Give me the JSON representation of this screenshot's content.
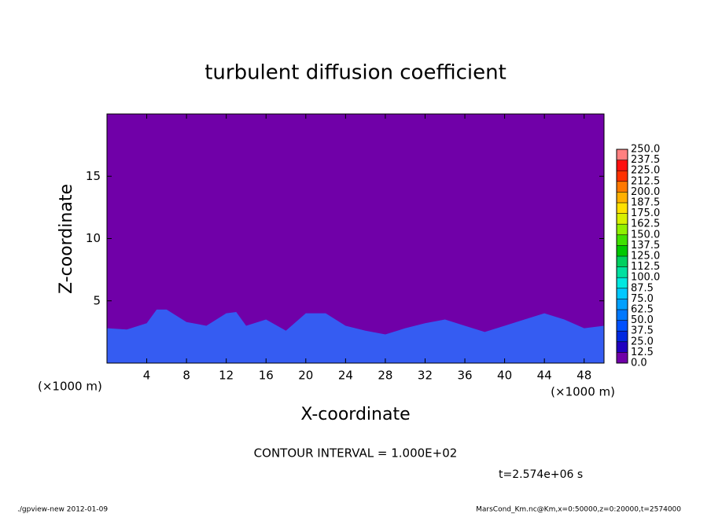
{
  "chart_data": {
    "type": "contour",
    "title": "turbulent diffusion coefficient",
    "xlabel": "X-coordinate",
    "ylabel": "Z-coordinate",
    "x_unit_left": "(×1000 m)",
    "x_unit_right": "(×1000 m)",
    "xlim": [
      0,
      50
    ],
    "ylim": [
      0,
      20
    ],
    "xticks": [
      4,
      8,
      12,
      16,
      20,
      24,
      28,
      32,
      36,
      40,
      44,
      48
    ],
    "yticks": [
      5,
      10,
      15
    ],
    "background_color": "#7000a8",
    "field_color": "#2a6cff",
    "x": [
      0,
      2,
      4,
      5,
      6,
      8,
      10,
      12,
      13,
      14,
      16,
      18,
      20,
      22,
      24,
      26,
      28,
      30,
      32,
      34,
      36,
      38,
      40,
      42,
      44,
      46,
      48,
      50
    ],
    "values": [
      2.8,
      2.7,
      3.2,
      4.3,
      4.3,
      3.3,
      3.0,
      4.0,
      4.1,
      3.0,
      3.5,
      2.6,
      4.0,
      4.0,
      3.0,
      2.6,
      2.3,
      2.8,
      3.2,
      3.5,
      3.0,
      2.5,
      3.0,
      3.5,
      4.0,
      3.5,
      2.8,
      3.0
    ],
    "colorbar": {
      "levels": [
        {
          "value": 0,
          "label": "0.0"
        },
        {
          "value": 12.5,
          "label": "12.5"
        },
        {
          "value": 25,
          "label": "25.0"
        },
        {
          "value": 37.5,
          "label": "37.5"
        },
        {
          "value": 50,
          "label": "50.0"
        },
        {
          "value": 62.5,
          "label": "62.5"
        },
        {
          "value": 75,
          "label": "75.0"
        },
        {
          "value": 87.5,
          "label": "87.5"
        },
        {
          "value": 100,
          "label": "100.0"
        },
        {
          "value": 112.5,
          "label": "112.5"
        },
        {
          "value": 125,
          "label": "125.0"
        },
        {
          "value": 137.5,
          "label": "137.5"
        },
        {
          "value": 150,
          "label": "150.0"
        },
        {
          "value": 162.5,
          "label": "162.5"
        },
        {
          "value": 175,
          "label": "175.0"
        },
        {
          "value": 187.5,
          "label": "187.5"
        },
        {
          "value": 200,
          "label": "200.0"
        },
        {
          "value": 212.5,
          "label": "212.5"
        },
        {
          "value": 225,
          "label": "225.0"
        },
        {
          "value": 237.5,
          "label": "237.5"
        },
        {
          "value": 250,
          "label": "250.0"
        }
      ],
      "colors": [
        "#7000a8",
        "#2000c0",
        "#0028e0",
        "#0050ff",
        "#0078ff",
        "#00a0ff",
        "#00c8ff",
        "#00e8e0",
        "#00e0a0",
        "#00d060",
        "#00c800",
        "#40e000",
        "#90f000",
        "#d8f000",
        "#ffe000",
        "#ffb000",
        "#ff7800",
        "#ff3000",
        "#ff1010",
        "#ff8080"
      ]
    },
    "annotations": [
      "CONTOUR INTERVAL = 1.000E+02",
      "t=2.574e+06 s"
    ],
    "footer_left": "./gpview-new   2012-01-09",
    "footer_right": "MarsCond_Km.nc@Km,x=0:50000,z=0:20000,t=2574000"
  }
}
